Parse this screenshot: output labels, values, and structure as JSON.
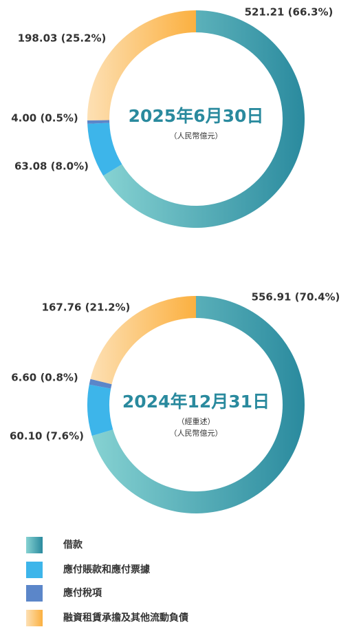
{
  "chart_data": [
    {
      "type": "donut",
      "title": "2025年6月30日",
      "subtitle": "（人民幣億元）",
      "values": [
        521.21,
        63.08,
        4.0,
        198.03
      ],
      "value_labels": [
        "521.21 (66.3%)",
        "63.08 (8.0%)",
        "4.00 (0.5%)",
        "198.03 (25.2%)"
      ]
    },
    {
      "type": "donut",
      "title": "2024年12月31日",
      "note": "（經重述）",
      "subtitle": "（人民幣億元）",
      "values": [
        556.91,
        60.1,
        6.6,
        167.76
      ],
      "value_labels": [
        "556.91 (70.4%)",
        "60.10 (7.6%)",
        "6.60 (0.8%)",
        "167.76 (21.2%)"
      ]
    }
  ],
  "legend": {
    "categories": [
      "借款",
      "應付賬款和應付票據",
      "應付稅項",
      "融資租賃承擔及其他流動負債"
    ],
    "colors": [
      "#2f8fa3",
      "#3db5ea",
      "#5b86c9",
      "#fbb040"
    ]
  }
}
